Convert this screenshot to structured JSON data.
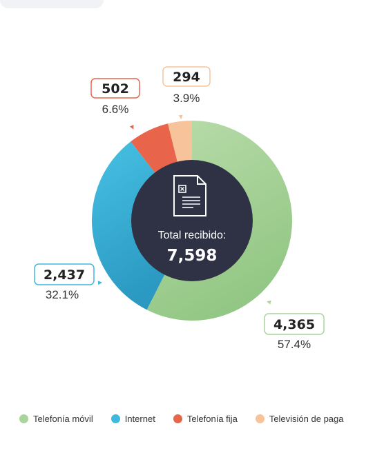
{
  "chart_data": {
    "type": "pie",
    "variant": "donut",
    "center": {
      "label": "Total recibido:",
      "total": "7,598"
    },
    "series": [
      {
        "name": "Telefonía móvil",
        "value": 4365,
        "value_label": "4,365",
        "percent_label": "57.4%",
        "color": "#a9d59c"
      },
      {
        "name": "Internet",
        "value": 2437,
        "value_label": "2,437",
        "percent_label": "32.1%",
        "color": "#3fb8dd"
      },
      {
        "name": "Telefonía fija",
        "value": 502,
        "value_label": "502",
        "percent_label": "6.6%",
        "color": "#e8644a"
      },
      {
        "name": "Televisión de paga",
        "value": 294,
        "value_label": "294",
        "percent_label": "3.9%",
        "color": "#f6c39a"
      }
    ],
    "legend_position": "bottom",
    "center_color": "#2f3144",
    "center_icon": "document-icon"
  }
}
